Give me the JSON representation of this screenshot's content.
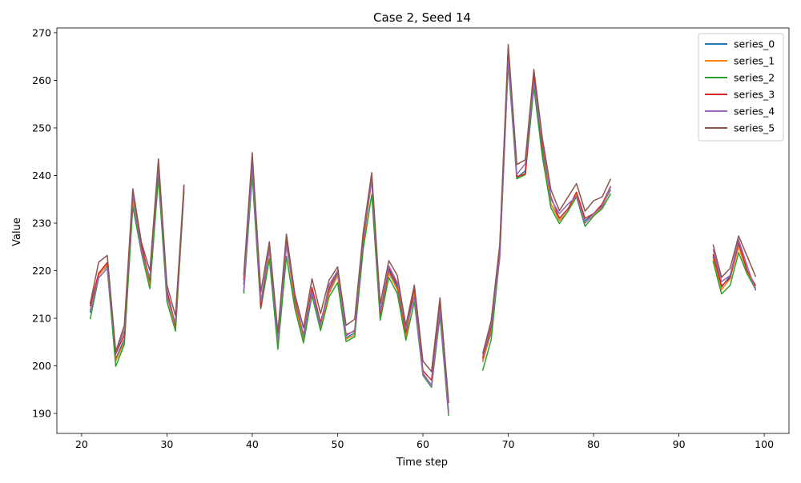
{
  "chart_data": {
    "type": "line",
    "title": "Case 2, Seed 14",
    "xlabel": "Time step",
    "ylabel": "Value",
    "xlim": [
      17.1,
      102.9
    ],
    "ylim": [
      185.8,
      271.0
    ],
    "xticks": [
      20,
      30,
      40,
      50,
      60,
      70,
      80,
      90,
      100
    ],
    "yticks": [
      190,
      200,
      210,
      220,
      230,
      240,
      250,
      260,
      270
    ],
    "grid": false,
    "legend_position": "top-right",
    "x": [
      21,
      22,
      23,
      24,
      25,
      26,
      27,
      28,
      29,
      30,
      31,
      32,
      33,
      34,
      35,
      36,
      37,
      38,
      39,
      40,
      41,
      42,
      43,
      44,
      45,
      46,
      47,
      48,
      49,
      50,
      51,
      52,
      53,
      54,
      55,
      56,
      57,
      58,
      59,
      60,
      61,
      62,
      63,
      64,
      65,
      66,
      67,
      68,
      69,
      70,
      71,
      72,
      73,
      74,
      75,
      76,
      77,
      78,
      79,
      80,
      81,
      82,
      83,
      84,
      85,
      86,
      87,
      88,
      89,
      90,
      91,
      92,
      93,
      94,
      95,
      96,
      97,
      98,
      99
    ],
    "series": [
      {
        "name": "series_0",
        "color": "#1f77b4",
        "values": [
          211.2,
          219.2,
          221.0,
          201.5,
          205.6,
          235.0,
          225.0,
          217.2,
          241.5,
          215.2,
          208.3,
          237.2,
          null,
          null,
          null,
          null,
          null,
          null,
          217.0,
          243.5,
          213.0,
          224.6,
          205.0,
          226.0,
          213.5,
          205.5,
          216.0,
          208.5,
          215.5,
          219.4,
          205.9,
          206.9,
          226.0,
          239.5,
          210.5,
          220.0,
          216.5,
          206.5,
          215.9,
          198.5,
          195.9,
          213.0,
          190.5,
          null,
          null,
          null,
          201.0,
          207.0,
          224.0,
          265.0,
          239.5,
          241.0,
          260.5,
          245.0,
          234.0,
          231.0,
          233.0,
          236.0,
          230.5,
          232.0,
          233.7,
          237.0,
          null,
          null,
          null,
          null,
          null,
          null,
          null,
          null,
          null,
          null,
          null,
          223.0,
          216.5,
          219.0,
          225.5,
          220.0,
          216.0
        ]
      },
      {
        "name": "series_1",
        "color": "#ff7f0e",
        "values": [
          211.6,
          219.0,
          221.3,
          201.0,
          205.0,
          234.8,
          224.5,
          216.8,
          241.2,
          214.8,
          207.8,
          237.0,
          null,
          null,
          null,
          null,
          null,
          null,
          215.5,
          243.2,
          212.3,
          224.3,
          204.3,
          225.5,
          213.0,
          205.2,
          215.8,
          208.0,
          215.2,
          219.0,
          205.6,
          206.5,
          225.6,
          239.0,
          210.2,
          219.5,
          216.0,
          206.2,
          215.6,
          198.3,
          195.8,
          212.5,
          190.0,
          null,
          null,
          null,
          200.8,
          207.5,
          224.5,
          265.5,
          239.3,
          240.5,
          261.0,
          246.0,
          234.0,
          230.5,
          232.5,
          236.2,
          230.0,
          231.8,
          233.3,
          237.5,
          null,
          null,
          null,
          null,
          null,
          null,
          null,
          null,
          null,
          null,
          null,
          222.5,
          216.0,
          218.3,
          225.0,
          219.7,
          216.3
        ]
      },
      {
        "name": "series_2",
        "color": "#2ca02c",
        "values": [
          209.8,
          218.5,
          220.5,
          199.9,
          204.5,
          233.5,
          223.8,
          216.2,
          239.5,
          213.5,
          207.3,
          236.6,
          null,
          null,
          null,
          null,
          null,
          null,
          215.2,
          240.0,
          212.0,
          222.5,
          203.5,
          223.0,
          212.0,
          204.8,
          214.8,
          207.4,
          214.5,
          217.5,
          205.1,
          206.1,
          224.5,
          236.0,
          209.6,
          218.6,
          215.2,
          205.4,
          213.5,
          198.0,
          195.5,
          210.5,
          189.5,
          null,
          null,
          null,
          199.0,
          205.5,
          223.0,
          263.5,
          239.3,
          240.2,
          258.5,
          244.0,
          233.2,
          229.9,
          232.5,
          235.5,
          229.3,
          231.5,
          233.0,
          236.2,
          null,
          null,
          null,
          null,
          null,
          null,
          null,
          null,
          null,
          null,
          null,
          222.0,
          215.1,
          216.9,
          223.8,
          219.3,
          216.0
        ]
      },
      {
        "name": "series_3",
        "color": "#d62728",
        "values": [
          212.5,
          219.5,
          221.7,
          202.5,
          206.5,
          236.3,
          225.5,
          218.0,
          242.5,
          215.9,
          208.5,
          237.8,
          null,
          null,
          null,
          null,
          null,
          null,
          218.0,
          243.8,
          212.3,
          225.5,
          206.2,
          227.0,
          213.8,
          206.5,
          216.5,
          209.1,
          216.2,
          220.0,
          206.6,
          207.3,
          226.5,
          239.5,
          211.0,
          220.5,
          217.0,
          207.0,
          216.5,
          199.0,
          197.0,
          213.8,
          192.2,
          null,
          null,
          null,
          201.5,
          208.0,
          224.5,
          266.5,
          239.8,
          240.3,
          261.5,
          246.0,
          235.5,
          231.0,
          233.0,
          236.5,
          231.0,
          232.0,
          234.0,
          237.8,
          null,
          null,
          null,
          null,
          null,
          null,
          null,
          null,
          null,
          null,
          null,
          223.5,
          216.8,
          218.5,
          226.0,
          220.0,
          216.8
        ]
      },
      {
        "name": "series_4",
        "color": "#9467bd",
        "values": [
          211.5,
          218.5,
          220.5,
          202.8,
          207.5,
          236.0,
          224.0,
          218.5,
          242.5,
          214.5,
          209.0,
          237.5,
          null,
          null,
          null,
          null,
          null,
          null,
          215.7,
          242.0,
          213.5,
          224.8,
          205.5,
          225.5,
          214.5,
          206.3,
          215.5,
          208.5,
          217.0,
          220.0,
          206.3,
          207.5,
          227.0,
          239.0,
          211.5,
          221.0,
          217.5,
          207.8,
          214.5,
          198.2,
          195.8,
          211.8,
          189.9,
          null,
          null,
          null,
          201.9,
          208.6,
          222.5,
          264.0,
          240.2,
          242.5,
          259.5,
          247.0,
          235.0,
          232.0,
          234.0,
          235.6,
          230.0,
          232.0,
          233.5,
          237.8,
          null,
          null,
          null,
          null,
          null,
          null,
          null,
          null,
          null,
          null,
          null,
          224.5,
          217.7,
          219.0,
          226.5,
          221.0,
          215.8
        ]
      },
      {
        "name": "series_5",
        "color": "#8c564b",
        "values": [
          213.0,
          221.8,
          223.2,
          203.0,
          208.5,
          237.2,
          226.0,
          220.0,
          243.5,
          217.0,
          210.5,
          238.1,
          null,
          null,
          null,
          null,
          null,
          null,
          219.0,
          244.8,
          215.5,
          226.1,
          207.0,
          227.7,
          215.0,
          208.0,
          218.3,
          211.0,
          218.0,
          220.8,
          208.5,
          209.8,
          228.0,
          240.6,
          213.0,
          222.1,
          219.0,
          208.5,
          217.0,
          201.0,
          198.8,
          214.3,
          192.5,
          null,
          null,
          null,
          202.5,
          209.5,
          225.5,
          267.5,
          242.3,
          243.3,
          262.3,
          247.9,
          237.0,
          232.6,
          235.5,
          238.3,
          232.5,
          234.7,
          235.5,
          239.3,
          null,
          null,
          null,
          null,
          null,
          null,
          null,
          null,
          null,
          null,
          null,
          225.5,
          218.6,
          220.5,
          227.3,
          223.0,
          218.7
        ]
      }
    ]
  }
}
